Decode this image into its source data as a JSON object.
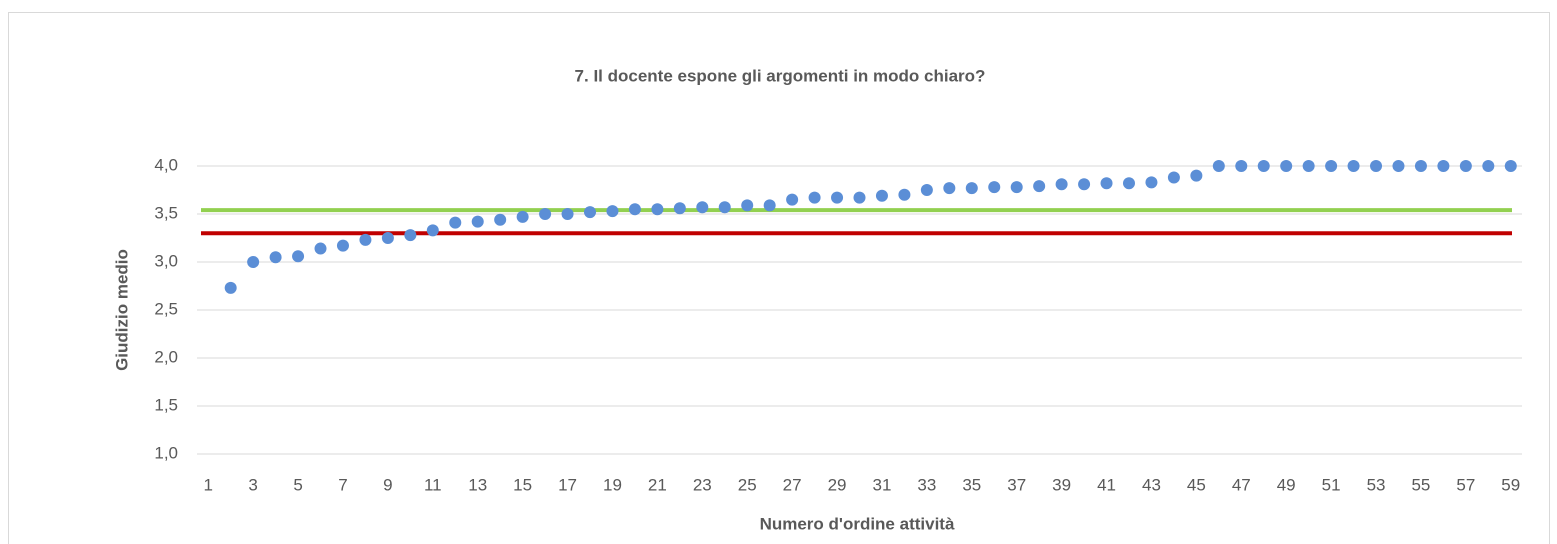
{
  "chart_data": {
    "type": "scatter",
    "title": "7. Il docente espone gli argomenti in modo chiaro?",
    "x_label": "Numero d'ordine attività",
    "y_label": "Giudizio medio",
    "x": [
      2,
      3,
      4,
      5,
      6,
      7,
      8,
      9,
      10,
      11,
      12,
      13,
      14,
      15,
      16,
      17,
      18,
      19,
      20,
      21,
      22,
      23,
      24,
      25,
      26,
      27,
      28,
      29,
      30,
      31,
      32,
      33,
      34,
      35,
      36,
      37,
      38,
      39,
      40,
      41,
      42,
      43,
      44,
      45,
      46,
      47,
      48,
      49,
      50,
      51,
      52,
      53,
      54,
      55,
      56,
      57,
      58,
      59
    ],
    "values": [
      2.73,
      3.0,
      3.05,
      3.06,
      3.14,
      3.17,
      3.23,
      3.25,
      3.28,
      3.33,
      3.41,
      3.42,
      3.44,
      3.47,
      3.5,
      3.5,
      3.52,
      3.53,
      3.55,
      3.55,
      3.56,
      3.57,
      3.57,
      3.59,
      3.59,
      3.65,
      3.67,
      3.67,
      3.67,
      3.69,
      3.7,
      3.75,
      3.77,
      3.77,
      3.78,
      3.78,
      3.79,
      3.81,
      3.81,
      3.82,
      3.82,
      3.83,
      3.88,
      3.9,
      4.0,
      4.0,
      4.0,
      4.0,
      4.0,
      4.0,
      4.0,
      4.0,
      4.0,
      4.0,
      4.0,
      4.0,
      4.0,
      4.0
    ],
    "color": "#5b8ed6",
    "reference_lines": [
      {
        "value": 3.54,
        "color": "#92d050"
      },
      {
        "value": 3.3,
        "color": "#c00000"
      }
    ],
    "xlim": [
      0.5,
      59.5
    ],
    "xticks": [
      1,
      3,
      5,
      7,
      9,
      11,
      13,
      15,
      17,
      19,
      21,
      23,
      25,
      27,
      29,
      31,
      33,
      35,
      37,
      39,
      41,
      43,
      45,
      47,
      49,
      51,
      53,
      55,
      57,
      59
    ],
    "ylim": [
      1,
      4
    ],
    "yticks": [
      {
        "value": 1,
        "label": "1,0"
      },
      {
        "value": 1.5,
        "label": "1,5"
      },
      {
        "value": 2,
        "label": "2,0"
      },
      {
        "value": 2.5,
        "label": "2,5"
      },
      {
        "value": 3,
        "label": "3,0"
      },
      {
        "value": 3.5,
        "label": "3,5"
      },
      {
        "value": 4,
        "label": "4,0"
      }
    ],
    "grid": true
  }
}
